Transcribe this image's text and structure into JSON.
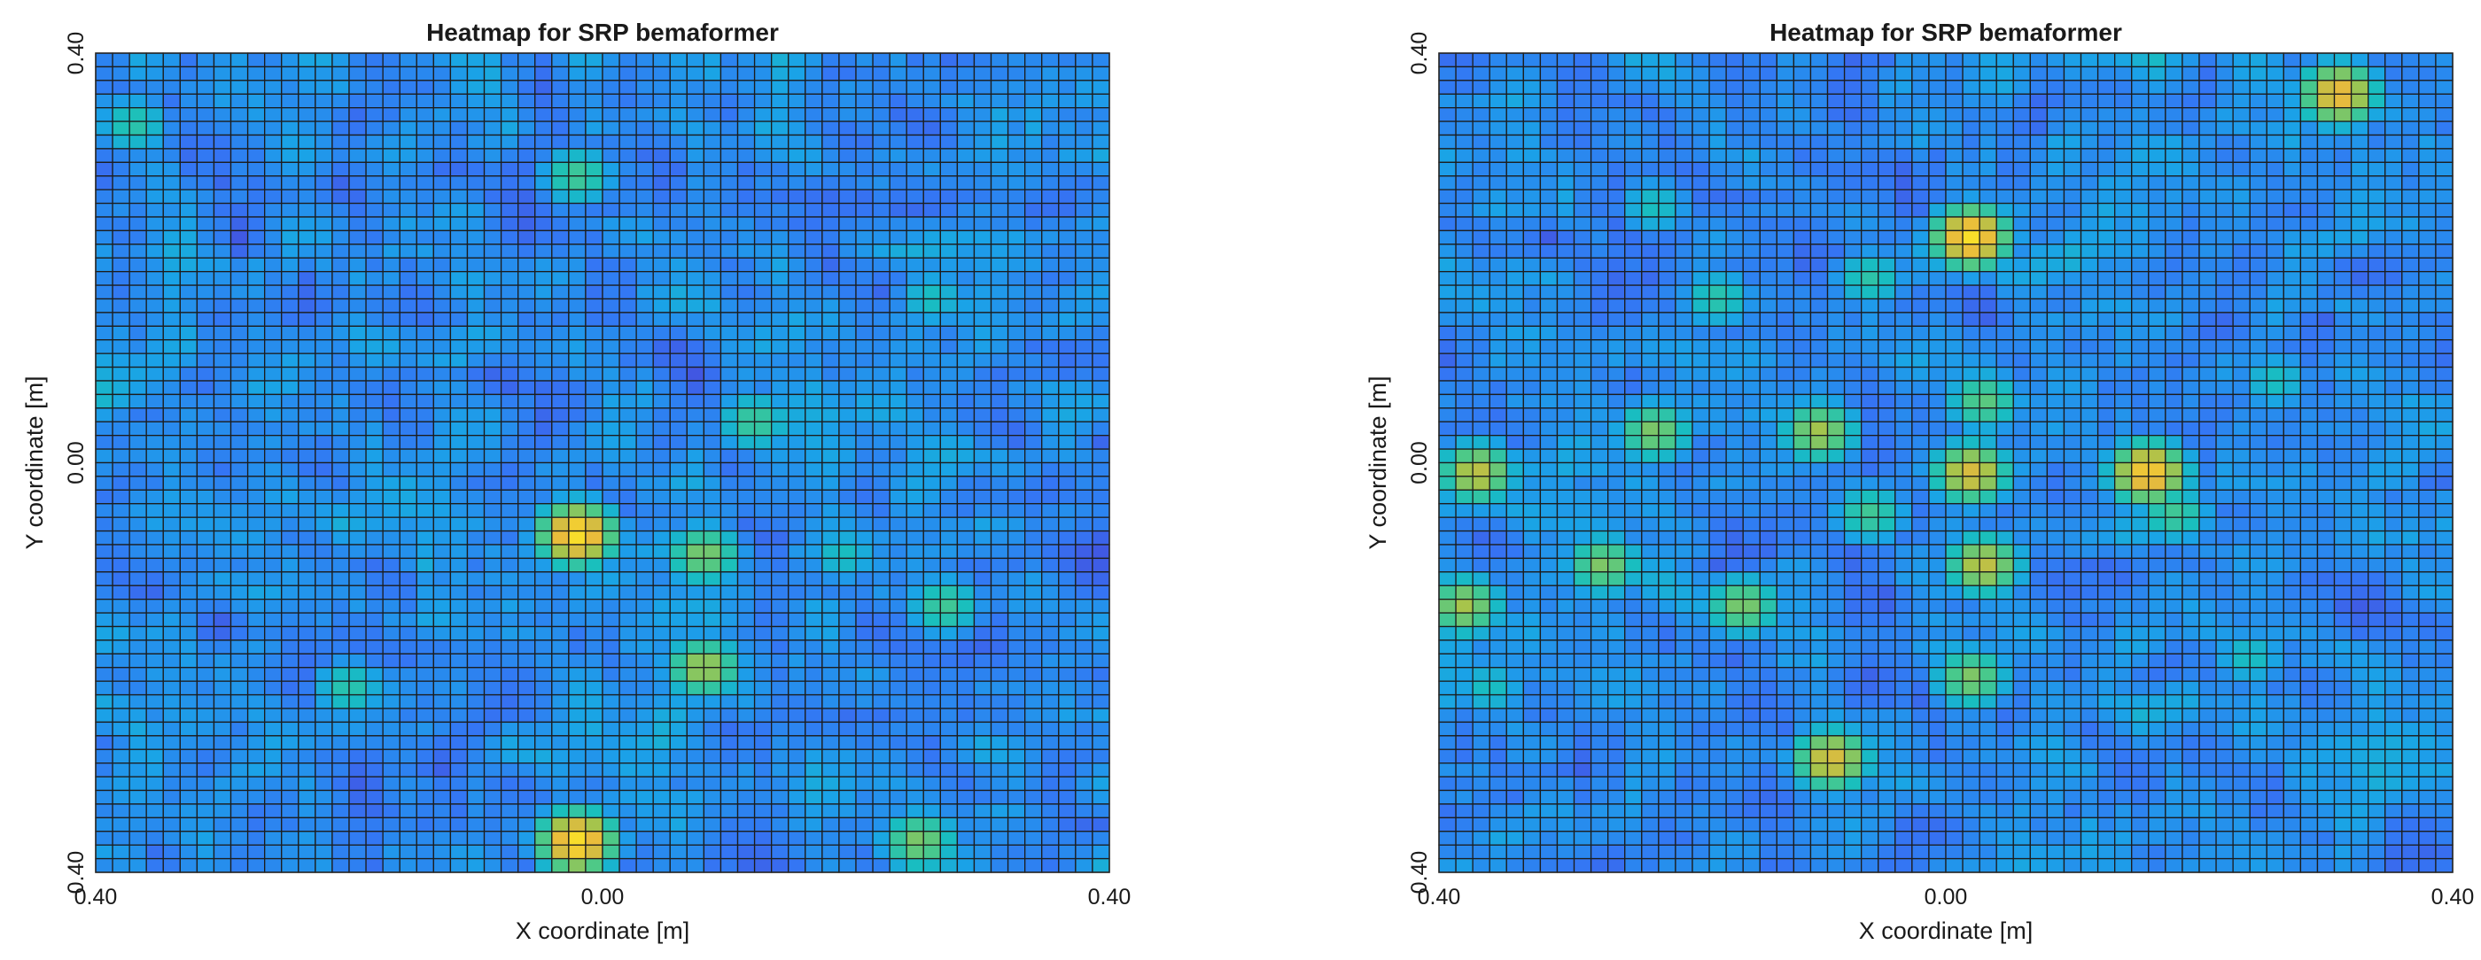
{
  "chart_data": [
    {
      "type": "heatmap",
      "title": "Heatmap for SRP bemaformer",
      "xlabel": "X coordinate [m]",
      "ylabel": "Y coordinate [m]",
      "x_ticks": [
        "0.40",
        "0.00",
        "0.40"
      ],
      "y_ticks": [
        "0.40",
        "0.00",
        "0.40"
      ],
      "xlim": [
        -0.4,
        0.4
      ],
      "ylim": [
        -0.4,
        0.4
      ],
      "grid_size": 60,
      "colormap": [
        "#3e26a8",
        "#4a42d6",
        "#3476f4",
        "#1aa3e7",
        "#19bfbe",
        "#4ac98a",
        "#a7c44b",
        "#e8ba3d",
        "#f9df2a"
      ],
      "peaks": [
        {
          "x": -0.02,
          "y": -0.07,
          "value": 1.0
        },
        {
          "x": -0.02,
          "y": -0.37,
          "value": 1.0
        },
        {
          "x": 0.08,
          "y": -0.2,
          "value": 0.75
        },
        {
          "x": 0.08,
          "y": -0.09,
          "value": 0.7
        },
        {
          "x": -0.02,
          "y": 0.28,
          "value": 0.6
        },
        {
          "x": 0.12,
          "y": 0.04,
          "value": 0.6
        },
        {
          "x": 0.25,
          "y": -0.37,
          "value": 0.7
        },
        {
          "x": 0.27,
          "y": -0.14,
          "value": 0.6
        },
        {
          "x": -0.37,
          "y": 0.33,
          "value": 0.55
        },
        {
          "x": -0.2,
          "y": -0.22,
          "value": 0.55
        },
        {
          "x": 0.26,
          "y": 0.16,
          "value": 0.5
        },
        {
          "x": 0.19,
          "y": -0.09,
          "value": 0.5
        }
      ]
    },
    {
      "type": "heatmap",
      "title": "Heatmap for SRP bemaformer",
      "xlabel": "X coordinate [m]",
      "ylabel": "Y coordinate [m]",
      "x_ticks": [
        "0.40",
        "0.00",
        "0.40"
      ],
      "y_ticks": [
        "0.40",
        "0.00",
        "0.40"
      ],
      "xlim": [
        -0.4,
        0.4
      ],
      "ylim": [
        -0.4,
        0.4
      ],
      "grid_size": 60,
      "colormap": [
        "#3e26a8",
        "#4a42d6",
        "#3476f4",
        "#1aa3e7",
        "#19bfbe",
        "#4ac98a",
        "#a7c44b",
        "#e8ba3d",
        "#f9df2a"
      ],
      "peaks": [
        {
          "x": 0.02,
          "y": 0.22,
          "value": 1.0
        },
        {
          "x": 0.31,
          "y": 0.36,
          "value": 0.9
        },
        {
          "x": 0.16,
          "y": -0.01,
          "value": 0.95
        },
        {
          "x": 0.02,
          "y": -0.01,
          "value": 0.85
        },
        {
          "x": -0.37,
          "y": -0.01,
          "value": 0.8
        },
        {
          "x": -0.09,
          "y": -0.29,
          "value": 0.85
        },
        {
          "x": 0.03,
          "y": -0.1,
          "value": 0.8
        },
        {
          "x": -0.38,
          "y": -0.14,
          "value": 0.75
        },
        {
          "x": -0.1,
          "y": 0.03,
          "value": 0.75
        },
        {
          "x": -0.23,
          "y": 0.03,
          "value": 0.7
        },
        {
          "x": -0.16,
          "y": -0.14,
          "value": 0.7
        },
        {
          "x": -0.27,
          "y": -0.1,
          "value": 0.7
        },
        {
          "x": 0.02,
          "y": -0.21,
          "value": 0.7
        },
        {
          "x": -0.18,
          "y": 0.16,
          "value": 0.55
        },
        {
          "x": -0.06,
          "y": 0.18,
          "value": 0.55
        },
        {
          "x": 0.03,
          "y": 0.06,
          "value": 0.65
        },
        {
          "x": -0.06,
          "y": -0.05,
          "value": 0.6
        },
        {
          "x": 0.18,
          "y": -0.05,
          "value": 0.6
        },
        {
          "x": -0.23,
          "y": 0.25,
          "value": 0.5
        },
        {
          "x": 0.26,
          "y": 0.08,
          "value": 0.5
        },
        {
          "x": -0.36,
          "y": -0.22,
          "value": 0.5
        },
        {
          "x": 0.24,
          "y": -0.19,
          "value": 0.5
        }
      ]
    }
  ]
}
